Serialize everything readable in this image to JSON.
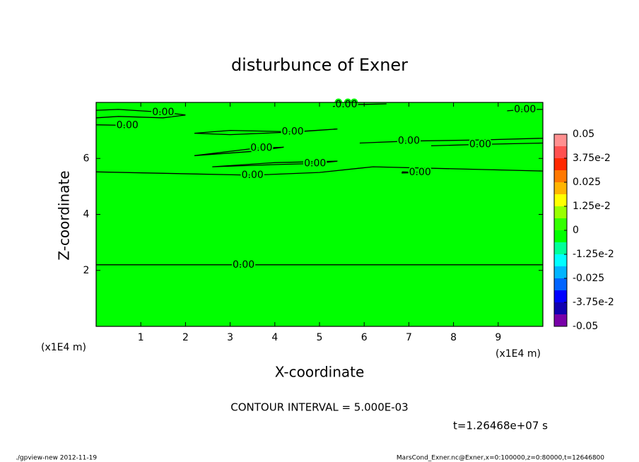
{
  "chart_data": {
    "type": "contour",
    "title": "disturbunce of Exner",
    "x_label": "X-coordinate",
    "y_label": "Z-coordinate",
    "x_unit": "(x1E4 m)",
    "xlim": [
      0,
      10
    ],
    "ylim": [
      0,
      8
    ],
    "xticks": [
      1,
      2,
      3,
      4,
      5,
      6,
      7,
      8,
      9
    ],
    "yticks": [
      2,
      4,
      6
    ],
    "colorbar_lim": [
      -0.05,
      0.05
    ],
    "colorbar_ticks": [
      -0.05,
      {
        "value": -0.0375,
        "label": "-3.75e-2"
      },
      -0.025,
      {
        "value": -0.0125,
        "label": "-1.25e-2"
      },
      0,
      {
        "value": 0.0125,
        "label": "1.25e-2"
      },
      0.025,
      {
        "value": 0.0375,
        "label": "3.75e-2"
      },
      0.05
    ],
    "colorbar_colors": [
      "#7800a8",
      "#1000b0",
      "#0000ff",
      "#0064ff",
      "#00b4ff",
      "#00ffff",
      "#00ff99",
      "#00ff00",
      "#33ff00",
      "#99ff00",
      "#ffff00",
      "#ffb400",
      "#ff7800",
      "#ff2800",
      "#ff5050",
      "#ff9090"
    ],
    "contours": [
      {
        "level": 0,
        "label": "0.00",
        "x": [
          0,
          1.5,
          3.3,
          5,
          6.6,
          10
        ],
        "y": [
          2.2,
          2.2,
          2.2,
          2.2,
          2.2,
          2.2
        ]
      },
      {
        "level": 0,
        "label": "0.00",
        "x": [
          0,
          1.5,
          3.5,
          5,
          6.2,
          10
        ],
        "y": [
          5.52,
          5.47,
          5.4,
          5.5,
          5.7,
          5.55
        ]
      },
      {
        "level": 0,
        "label": "0.00",
        "x": [
          6.85,
          7.25,
          6.85,
          6.85
        ],
        "y": [
          5.52,
          5.5,
          5.48,
          5.52
        ]
      },
      {
        "level": 0,
        "label": "0.00",
        "x": [
          0,
          0.5,
          1.5,
          2,
          1.5,
          0.5,
          0
        ],
        "y": [
          7.72,
          7.75,
          7.65,
          7.55,
          7.45,
          7.5,
          7.45
        ]
      },
      {
        "level": 0,
        "label": "0.00",
        "x": [
          0,
          0.7
        ],
        "y": [
          7.2,
          7.18
        ]
      },
      {
        "level": 0,
        "label": "0.00",
        "x": [
          5.3,
          5.6,
          6.0,
          6.5
        ],
        "y": [
          7.85,
          7.93,
          7.93,
          7.95
        ]
      },
      {
        "level": 0,
        "label": "0.00",
        "x": [
          2.2,
          3,
          4.4,
          5.4,
          4.5,
          3,
          2.2
        ],
        "y": [
          6.9,
          7.0,
          6.95,
          7.05,
          6.95,
          6.85,
          6.9
        ]
      },
      {
        "level": 0,
        "label": "0.00",
        "x": [
          2.2,
          3.5,
          3.7,
          4.2,
          3.5,
          2.2
        ],
        "y": [
          6.1,
          6.35,
          6.37,
          6.4,
          6.25,
          6.1
        ]
      },
      {
        "level": 0,
        "label": "0.00",
        "x": [
          2.6,
          4,
          4.9,
          5.4,
          4,
          2.6
        ],
        "y": [
          5.7,
          5.78,
          5.82,
          5.9,
          5.85,
          5.7
        ]
      },
      {
        "level": 0,
        "label": "0.00",
        "x": [
          5.9,
          7,
          8.6,
          10
        ],
        "y": [
          6.55,
          6.62,
          6.66,
          6.72
        ]
      },
      {
        "level": 0,
        "label": "0.00",
        "x": [
          7.5,
          8.6,
          10
        ],
        "y": [
          6.45,
          6.5,
          6.55
        ]
      },
      {
        "level": 0,
        "label": "0.00",
        "x": [
          9.2,
          9.6,
          10
        ],
        "y": [
          7.7,
          7.75,
          7.75
        ]
      }
    ],
    "contour_interval": "CONTOUR INTERVAL = 5.000E-03",
    "time_label": "t=1.26468e+07 s",
    "footer_left": "./gpview-new  2012-11-19",
    "footer_right": "MarsCond_Exner.nc@Exner,x=0:100000,z=0:80000,t=12646800"
  }
}
